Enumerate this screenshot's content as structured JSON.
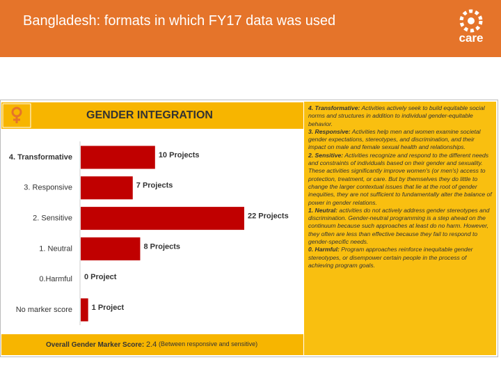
{
  "header": {
    "title": "Bangladesh: formats in which FY17 data was used",
    "logo": "care"
  },
  "chart_data": {
    "type": "bar",
    "orientation": "horizontal",
    "title": "GENDER INTEGRATION",
    "categories": [
      "4. Transformative",
      "3. Responsive",
      "2. Sensitive",
      "1. Neutral",
      "0.Harmful",
      "No marker score"
    ],
    "values": [
      10,
      7,
      22,
      8,
      0,
      1
    ],
    "value_labels": [
      "10 Projects",
      "7 Projects",
      "22 Projects",
      "8 Projects",
      "0 Project",
      "1 Project"
    ],
    "color": "#c00000"
  },
  "footer": {
    "label": "Overall Gender Marker Score:",
    "score": "2.4",
    "note": "(Between responsive and sensitive)"
  },
  "definitions": [
    {
      "term": "4. Transformative:",
      "text": "Activities actively seek to build equitable social norms and structures in addition to individual gender-equitable behavior."
    },
    {
      "term": "3. Responsive:",
      "text": "Activities help men and women examine societal gender expectations, stereotypes, and discrimination, and their impact on male and female sexual health and relationships."
    },
    {
      "term": "2. Sensitive:",
      "text": "Activities recognize and respond to the different needs and constraints of individuals based on their gender and sexuality. These activities significantly improve women's (or men's) access to protection, treatment, or care. But by themselves they do little to change the larger contextual issues that lie at the root of gender inequities, they are not sufficient to fundamentally alter the balance of power in gender relations."
    },
    {
      "term": "1. Neutral:",
      "text": "activities do not actively address gender stereotypes and discrimination. Gender-neutral programming is a step ahead on the continuum because such approaches at least do no harm. However, they often are less than effective because they fail to respond to gender-specific needs."
    },
    {
      "term": "0. Harmful:",
      "text": "Program approaches reinforce inequitable gender stereotypes, or disempower certain people in the process of achieving program goals."
    }
  ]
}
